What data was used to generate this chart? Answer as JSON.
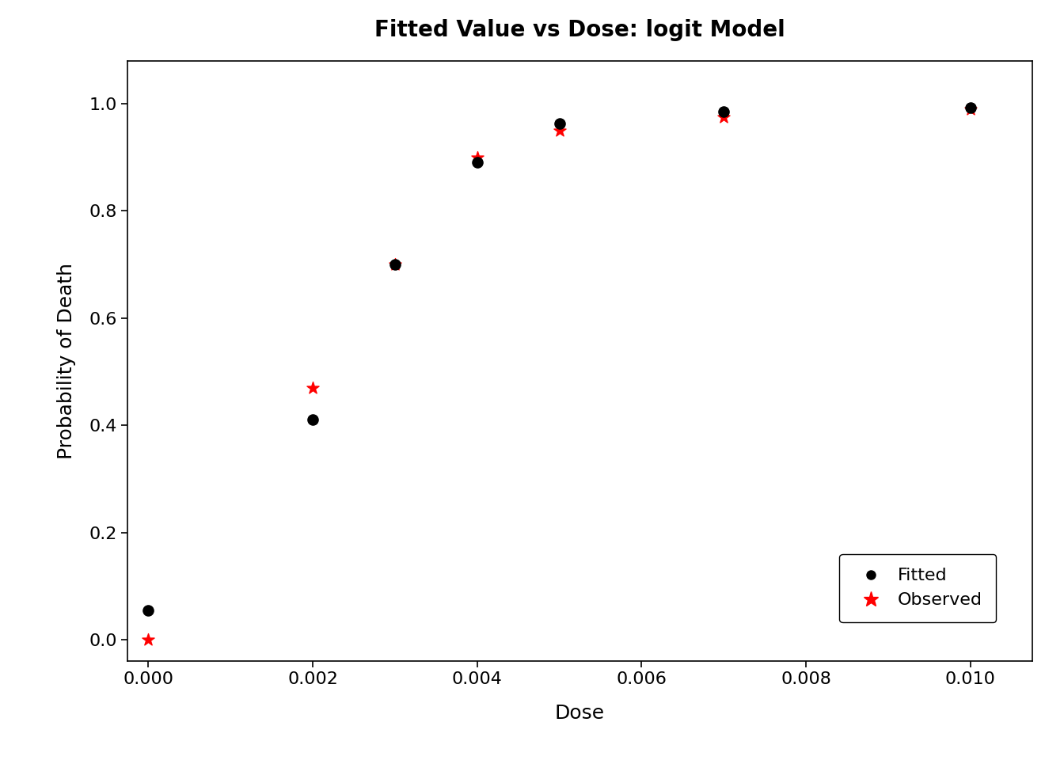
{
  "title": "Fitted Value vs Dose: logit Model",
  "xlabel": "Dose",
  "ylabel": "Probability of Death",
  "fitted_x": [
    0.0,
    0.002,
    0.003,
    0.004,
    0.005,
    0.007,
    0.01
  ],
  "fitted_y": [
    0.055,
    0.41,
    0.7,
    0.89,
    0.963,
    0.985,
    0.993
  ],
  "observed_x": [
    0.0,
    0.002,
    0.003,
    0.004,
    0.005,
    0.007,
    0.01
  ],
  "observed_y": [
    0.0,
    0.47,
    0.7,
    0.9,
    0.95,
    0.975,
    0.99
  ],
  "xlim": [
    -0.00025,
    0.01075
  ],
  "ylim": [
    -0.04,
    1.08
  ],
  "yticks": [
    0.0,
    0.2,
    0.4,
    0.6,
    0.8,
    1.0
  ],
  "xticks": [
    0.0,
    0.002,
    0.004,
    0.006,
    0.008,
    0.01
  ],
  "fitted_color": "#000000",
  "observed_color": "#FF0000",
  "background_color": "#FFFFFF",
  "title_fontsize": 20,
  "axis_label_fontsize": 18,
  "tick_fontsize": 16,
  "marker_size_fitted": 90,
  "marker_size_observed": 130,
  "legend_fontsize": 16,
  "legend_marker_fitted": 10,
  "legend_marker_observed": 14
}
